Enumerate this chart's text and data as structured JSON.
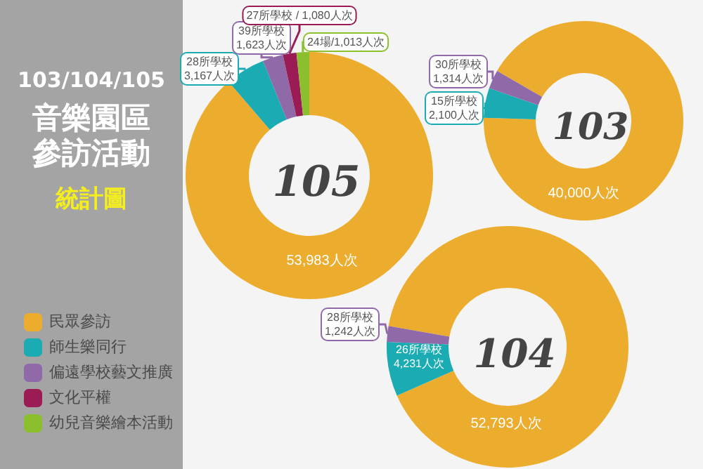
{
  "chart_data": {
    "type": "donut",
    "title": "103/104/105",
    "subtitle": "音樂園區參訪活動",
    "annotations": [
      "統計圖"
    ],
    "legend": "left",
    "categories": [
      "民眾參訪",
      "師生樂同行",
      "偏遠學校藝文推廣",
      "文化平權",
      "幼兒音樂繪本活動"
    ],
    "colors": [
      "#ecad2f",
      "#1aabb3",
      "#9069a9",
      "#9b1c54",
      "#8cbf2e"
    ],
    "series": [
      {
        "name": "105",
        "values": [
          53983,
          3167,
          1623,
          1080,
          1013
        ],
        "value_labels": [
          "53,983人次",
          "28所學校\n3,167人次",
          "39所學校\n1,623人次",
          "27所學校 / 1,080人次",
          "24場/1,013人次"
        ]
      },
      {
        "name": "103",
        "values": [
          40000,
          2100,
          1314,
          null,
          null
        ],
        "value_labels": [
          "40,000人次",
          "15所學校\n2,100人次",
          "30所學校\n1,314人次",
          null,
          null
        ]
      },
      {
        "name": "104",
        "values": [
          52793,
          4231,
          1242,
          null,
          null
        ],
        "value_labels": [
          "52,793人次",
          "26所學校\n4,231人次",
          "28所學校\n1,242人次",
          null,
          null
        ]
      }
    ]
  }
}
